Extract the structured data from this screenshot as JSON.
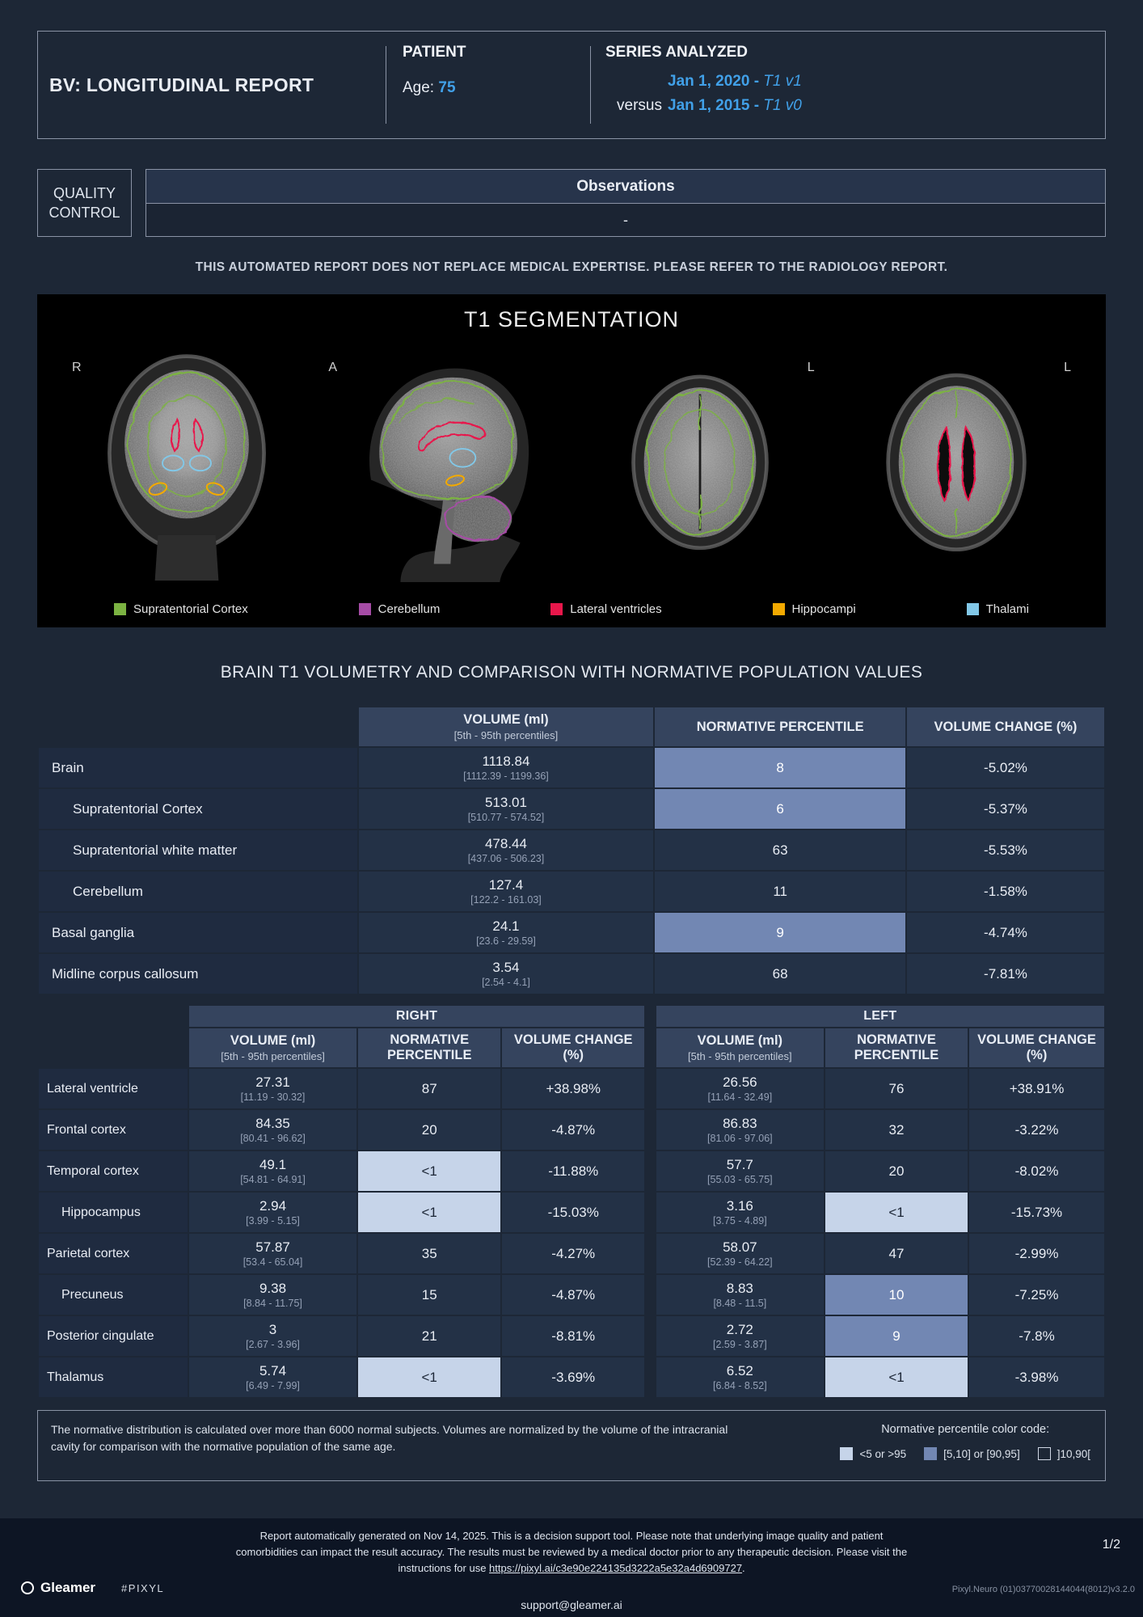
{
  "header": {
    "report_title": "BV: LONGITUDINAL REPORT",
    "patient": {
      "label": "PATIENT",
      "age_label": "Age:",
      "age_value": "75"
    },
    "series": {
      "label": "SERIES ANALYZED",
      "current": {
        "date": "Jan 1, 2020 - ",
        "tag": "T1 v1"
      },
      "versus_label": "versus",
      "previous": {
        "date": "Jan 1, 2015 - ",
        "tag": "T1 v0"
      }
    }
  },
  "quality_control": {
    "title": "QUALITY CONTROL",
    "observations_title": "Observations",
    "observations_value": "-"
  },
  "disclaimer": "THIS AUTOMATED REPORT DOES NOT REPLACE MEDICAL EXPERTISE. PLEASE REFER TO THE RADIOLOGY REPORT.",
  "segmentation": {
    "title": "T1 SEGMENTATION",
    "views": [
      {
        "orientation": "R"
      },
      {
        "orientation": "A"
      },
      {
        "orientation": "L"
      },
      {
        "orientation": "L"
      }
    ],
    "legend": [
      {
        "label": "Supratentorial Cortex",
        "color": "#7cb342"
      },
      {
        "label": "Cerebellum",
        "color": "#a64ca6"
      },
      {
        "label": "Lateral ventricles",
        "color": "#e8174b"
      },
      {
        "label": "Hippocampi",
        "color": "#f2a900"
      },
      {
        "label": "Thalami",
        "color": "#82c8e8"
      }
    ]
  },
  "volumetry": {
    "title": "BRAIN T1 VOLUMETRY AND COMPARISON WITH NORMATIVE POPULATION VALUES",
    "headers": {
      "volume": "VOLUME (ml)",
      "volume_sub": "[5th - 95th percentiles]",
      "percentile": "NORMATIVE PERCENTILE",
      "change": "VOLUME CHANGE (%)",
      "right": "RIGHT",
      "left": "LEFT"
    },
    "table1": {
      "rows": [
        {
          "label": "Brain",
          "indent": 0,
          "volume": "1118.84",
          "range": "[1112.39 - 1199.36]",
          "percentile": "8",
          "percentile_level": "mid",
          "change": "-5.02%"
        },
        {
          "label": "Supratentorial Cortex",
          "indent": 1,
          "volume": "513.01",
          "range": "[510.77 - 574.52]",
          "percentile": "6",
          "percentile_level": "mid",
          "change": "-5.37%"
        },
        {
          "label": "Supratentorial white matter",
          "indent": 1,
          "volume": "478.44",
          "range": "[437.06 - 506.23]",
          "percentile": "63",
          "percentile_level": "none",
          "change": "-5.53%"
        },
        {
          "label": "Cerebellum",
          "indent": 1,
          "volume": "127.4",
          "range": "[122.2 - 161.03]",
          "percentile": "11",
          "percentile_level": "none",
          "change": "-1.58%"
        },
        {
          "label": "Basal ganglia",
          "indent": 0,
          "volume": "24.1",
          "range": "[23.6 - 29.59]",
          "percentile": "9",
          "percentile_level": "mid",
          "change": "-4.74%"
        },
        {
          "label": "Midline corpus callosum",
          "indent": 0,
          "volume": "3.54",
          "range": "[2.54 - 4.1]",
          "percentile": "68",
          "percentile_level": "none",
          "change": "-7.81%"
        }
      ]
    },
    "table2": {
      "rows": [
        {
          "label": "Lateral ventricle",
          "indent": 0,
          "right": {
            "volume": "27.31",
            "range": "[11.19 - 30.32]",
            "percentile": "87",
            "percentile_level": "none",
            "change": "+38.98%"
          },
          "left": {
            "volume": "26.56",
            "range": "[11.64 - 32.49]",
            "percentile": "76",
            "percentile_level": "none",
            "change": "+38.91%"
          }
        },
        {
          "label": "Frontal cortex",
          "indent": 0,
          "right": {
            "volume": "84.35",
            "range": "[80.41 - 96.62]",
            "percentile": "20",
            "percentile_level": "none",
            "change": "-4.87%"
          },
          "left": {
            "volume": "86.83",
            "range": "[81.06 - 97.06]",
            "percentile": "32",
            "percentile_level": "none",
            "change": "-3.22%"
          }
        },
        {
          "label": "Temporal cortex",
          "indent": 0,
          "right": {
            "volume": "49.1",
            "range": "[54.81 - 64.91]",
            "percentile": "<1",
            "percentile_level": "low",
            "change": "-11.88%"
          },
          "left": {
            "volume": "57.7",
            "range": "[55.03 - 65.75]",
            "percentile": "20",
            "percentile_level": "none",
            "change": "-8.02%"
          }
        },
        {
          "label": "Hippocampus",
          "indent": 1,
          "right": {
            "volume": "2.94",
            "range": "[3.99 - 5.15]",
            "percentile": "<1",
            "percentile_level": "low",
            "change": "-15.03%"
          },
          "left": {
            "volume": "3.16",
            "range": "[3.75 - 4.89]",
            "percentile": "<1",
            "percentile_level": "low",
            "change": "-15.73%"
          }
        },
        {
          "label": "Parietal cortex",
          "indent": 0,
          "right": {
            "volume": "57.87",
            "range": "[53.4 - 65.04]",
            "percentile": "35",
            "percentile_level": "none",
            "change": "-4.27%"
          },
          "left": {
            "volume": "58.07",
            "range": "[52.39 - 64.22]",
            "percentile": "47",
            "percentile_level": "none",
            "change": "-2.99%"
          }
        },
        {
          "label": "Precuneus",
          "indent": 1,
          "right": {
            "volume": "9.38",
            "range": "[8.84 - 11.75]",
            "percentile": "15",
            "percentile_level": "none",
            "change": "-4.87%"
          },
          "left": {
            "volume": "8.83",
            "range": "[8.48 - 11.5]",
            "percentile": "10",
            "percentile_level": "mid",
            "change": "-7.25%"
          }
        },
        {
          "label": "Posterior cingulate",
          "indent": 0,
          "right": {
            "volume": "3",
            "range": "[2.67 - 3.96]",
            "percentile": "21",
            "percentile_level": "none",
            "change": "-8.81%"
          },
          "left": {
            "volume": "2.72",
            "range": "[2.59 - 3.87]",
            "percentile": "9",
            "percentile_level": "mid",
            "change": "-7.8%"
          }
        },
        {
          "label": "Thalamus",
          "indent": 0,
          "right": {
            "volume": "5.74",
            "range": "[6.49 - 7.99]",
            "percentile": "<1",
            "percentile_level": "low",
            "change": "-3.69%"
          },
          "left": {
            "volume": "6.52",
            "range": "[6.84 - 8.52]",
            "percentile": "<1",
            "percentile_level": "low",
            "change": "-3.98%"
          }
        }
      ]
    }
  },
  "footnote": {
    "text": "The normative distribution is calculated over more than 6000 normal subjects. Volumes are normalized by the volume of the intracranial cavity for comparison with the normative population of the same age.",
    "color_code_title": "Normative percentile color code:",
    "color_code": [
      {
        "label": "<5 or >95",
        "level": "low"
      },
      {
        "label": "[5,10] or [90,95]",
        "level": "mid"
      },
      {
        "label": "]10,90[",
        "level": "none"
      }
    ]
  },
  "footer": {
    "line1": "Report automatically generated on Nov 14, 2025. This is a decision support tool. Please note that underlying image quality and patient",
    "line2": "comorbidities can impact the result accuracy. The results must be reviewed by a medical doctor prior to any therapeutic decision. Please visit the",
    "line3_prefix": "instructions for use ",
    "link": "https://pixyl.ai/c3e90e224135d3222a5e32a4d6909727",
    "line3_suffix": ".",
    "page": "1/2",
    "version": "Pixyl.Neuro (01)03770028144044(8012)v3.2.0",
    "email": "support@gleamer.ai",
    "brand": "Gleamer",
    "brand2": "#PIXYL"
  },
  "colors": {
    "accent": "#41a0e8",
    "highlight_mid": "#7287b3",
    "highlight_low": "#c6d4e9"
  }
}
